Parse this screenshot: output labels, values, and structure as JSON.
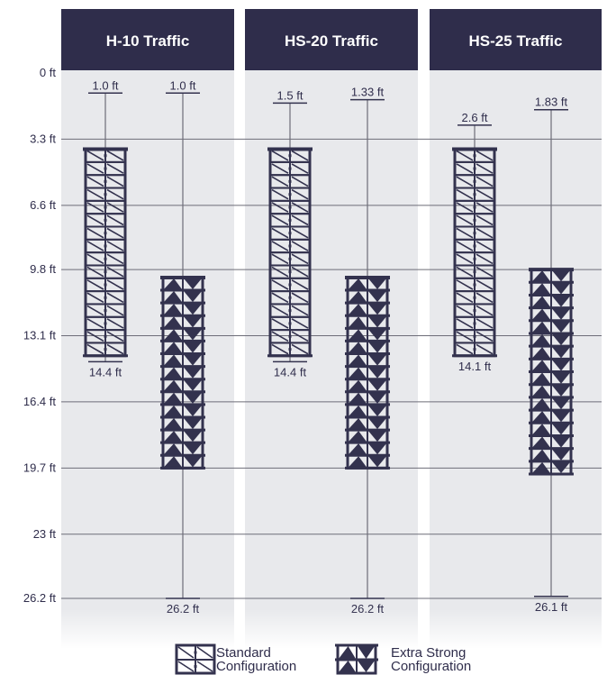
{
  "chart_data": {
    "type": "range-bar",
    "y_axis": {
      "unit": "ft",
      "ticks": [
        "0 ft",
        "3.3 ft",
        "6.6 ft",
        "9.8 ft",
        "13.1 ft",
        "16.4 ft",
        "19.7 ft",
        "23 ft",
        "26.2 ft"
      ],
      "tick_values": [
        0,
        3.3,
        6.6,
        9.8,
        13.1,
        16.4,
        19.7,
        23,
        26.2
      ],
      "reversed": true,
      "range": [
        0,
        26.2
      ]
    },
    "panels": [
      {
        "title": "H-10 Traffic",
        "bars": [
          {
            "config": "standard",
            "min_label": "1.0 ft",
            "max_label": "14.4 ft",
            "min": 1.0,
            "max": 14.4,
            "body_top": 3.8,
            "body_bottom": 14.1
          },
          {
            "config": "extra",
            "min_label": "1.0 ft",
            "max_label": "26.2 ft",
            "min": 1.0,
            "max": 26.2,
            "body_top": 10.2,
            "body_bottom": 19.7
          }
        ]
      },
      {
        "title": "HS-20 Traffic",
        "bars": [
          {
            "config": "standard",
            "min_label": "1.5 ft",
            "max_label": "14.4 ft",
            "min": 1.5,
            "max": 14.4,
            "body_top": 3.8,
            "body_bottom": 14.1
          },
          {
            "config": "extra",
            "min_label": "1.33 ft",
            "max_label": "26.2 ft",
            "min": 1.33,
            "max": 26.2,
            "body_top": 10.2,
            "body_bottom": 19.7
          }
        ]
      },
      {
        "title": "HS-25 Traffic",
        "bars": [
          {
            "config": "standard",
            "min_label": "2.6 ft",
            "max_label": "14.1 ft",
            "min": 2.6,
            "max": 14.1,
            "body_top": 3.8,
            "body_bottom": 14.1
          },
          {
            "config": "extra",
            "min_label": "1.83 ft",
            "max_label": "26.1 ft",
            "min": 1.83,
            "max": 26.1,
            "body_top": 9.8,
            "body_bottom": 20.0
          }
        ]
      }
    ],
    "legend": [
      {
        "key": "standard",
        "label_line1": "Standard",
        "label_line2": "Configuration"
      },
      {
        "key": "extra",
        "label_line1": "Extra Strong",
        "label_line2": "Configuration"
      }
    ],
    "legend_position": "bottom-center",
    "grid": true
  },
  "colors": {
    "header": "#2f2d4b",
    "panel": "#e8e9ec",
    "text": "#2f2d4b",
    "grid": "#6d6d78",
    "mark": "#33324e"
  }
}
